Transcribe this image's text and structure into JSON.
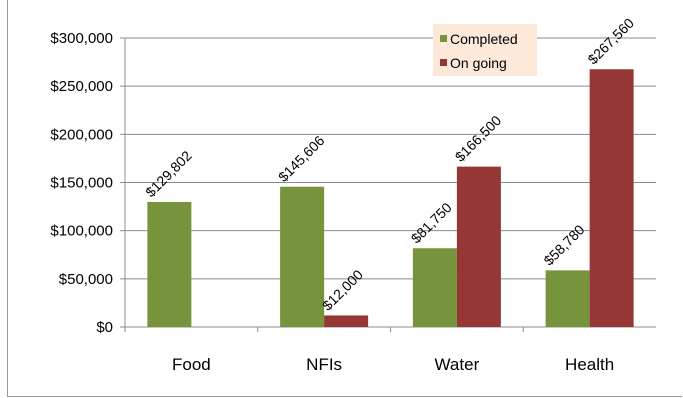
{
  "chart_data": {
    "type": "bar",
    "categories": [
      "Food",
      "NFIs",
      "Water",
      "Health"
    ],
    "series": [
      {
        "name": "Completed",
        "values": [
          129802,
          145606,
          81750,
          58780
        ],
        "labels": [
          "$129,802",
          "$145,606",
          "$81,750",
          "$58,780"
        ],
        "color": "#77933c"
      },
      {
        "name": "On going",
        "values": [
          null,
          12000,
          166500,
          267560
        ],
        "labels": [
          "",
          "$12,000",
          "$166,500",
          "$267,560"
        ],
        "color": "#953735"
      }
    ],
    "ylim": [
      0,
      300000
    ],
    "yticks": [
      0,
      50000,
      100000,
      150000,
      200000,
      250000,
      300000
    ],
    "ytick_labels": [
      "$0",
      "$50,000",
      "$100,000",
      "$150,000",
      "$200,000",
      "$250,000",
      "$300,000"
    ],
    "title": "",
    "xlabel": "",
    "ylabel": "",
    "grid": true,
    "legend": {
      "position": "top-right",
      "background": "#fde9d9"
    }
  }
}
